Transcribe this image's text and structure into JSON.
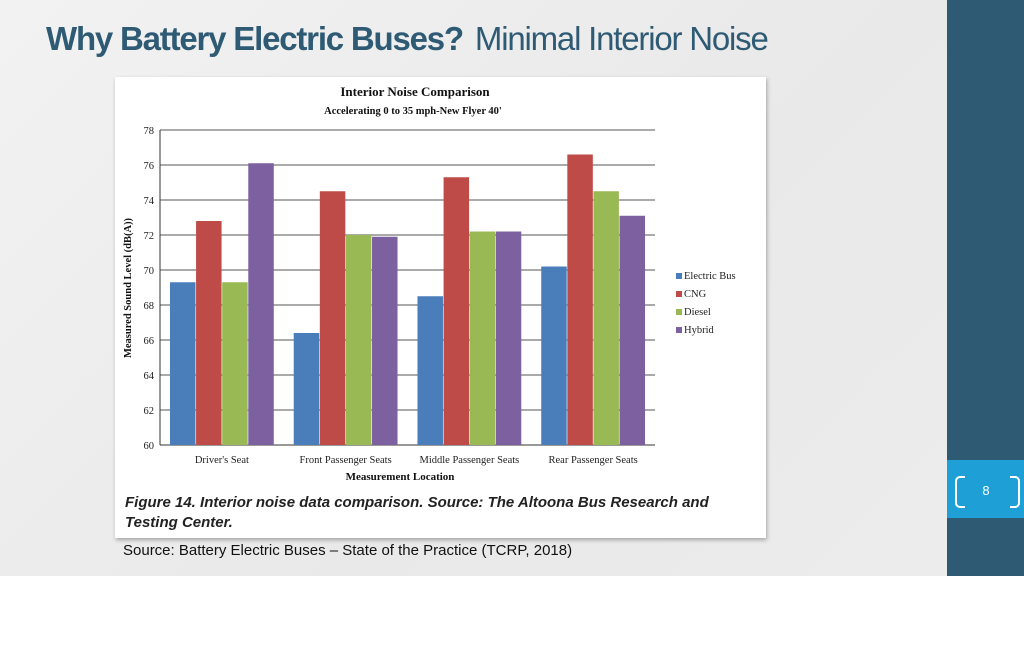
{
  "slide": {
    "title_strong": "Why Battery Electric Buses?",
    "title_rest": "Minimal Interior Noise",
    "source": "Source: Battery Electric Buses – State of the Practice (TCRP, 2018)",
    "page_number": "8",
    "colors": {
      "title": "#2e5a74",
      "sidebar": "#2e5a74",
      "badge": "#1ea0d6"
    }
  },
  "figure": {
    "caption": "Figure 14. Interior noise data comparison. Source: The Altoona Bus Research and Testing Center."
  },
  "chart_data": {
    "type": "bar",
    "title": "Interior Noise Comparison",
    "subtitle": "Accelerating 0 to 35 mph-New Flyer 40'",
    "xlabel": "Measurement Location",
    "ylabel": "Measured Sound Level (dB(A))",
    "categories": [
      "Driver's Seat",
      "Front Passenger Seats",
      "Middle Passenger Seats",
      "Rear Passenger Seats"
    ],
    "series": [
      {
        "name": "Electric Bus",
        "color": "#4a7ebb",
        "values": [
          69.3,
          66.4,
          68.5,
          70.2
        ]
      },
      {
        "name": "CNG",
        "color": "#be4b48",
        "values": [
          72.8,
          74.5,
          75.3,
          76.6
        ]
      },
      {
        "name": "Diesel",
        "color": "#98b954",
        "values": [
          69.3,
          72.0,
          72.2,
          74.5
        ]
      },
      {
        "name": "Hybrid",
        "color": "#7d60a0",
        "values": [
          76.1,
          71.9,
          72.2,
          73.1
        ]
      }
    ],
    "ylim": [
      60,
      78
    ],
    "yticks": [
      60,
      62,
      64,
      66,
      68,
      70,
      72,
      74,
      76,
      78
    ],
    "grid": true,
    "legend": "right"
  }
}
